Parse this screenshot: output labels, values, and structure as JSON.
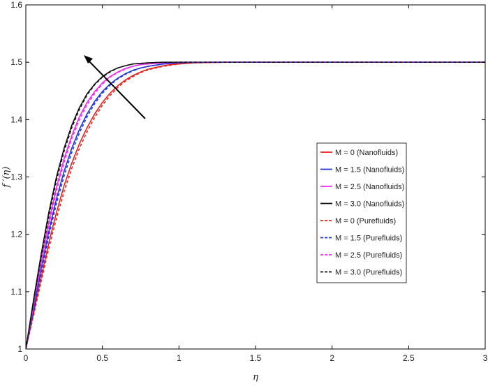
{
  "chart_data": {
    "type": "line",
    "title": "",
    "xlabel": "η",
    "ylabel": "f ′(η)",
    "xlim": [
      0,
      3
    ],
    "ylim": [
      1,
      1.6
    ],
    "xticks": [
      "0",
      "0.5",
      "1",
      "1.5",
      "2",
      "2.5",
      "3"
    ],
    "yticks": [
      "1",
      "1.1",
      "1.2",
      "1.3",
      "1.4",
      "1.5",
      "1.6"
    ],
    "grid": false,
    "legend_position": "right-middle",
    "annotation": "arrow pointing toward increasing M",
    "x": [
      0,
      0.05,
      0.1,
      0.15,
      0.2,
      0.25,
      0.3,
      0.35,
      0.4,
      0.45,
      0.5,
      0.55,
      0.6,
      0.65,
      0.7,
      0.75,
      0.8,
      0.85,
      0.9,
      0.95,
      1.0,
      1.1,
      1.2,
      1.3,
      1.5,
      2.0,
      2.5,
      3.0
    ],
    "series": [
      {
        "name": "M = 0 (Nanofluids)",
        "color": "#e8201b",
        "style": "solid",
        "values": [
          1.0,
          1.062,
          1.125,
          1.185,
          1.238,
          1.285,
          1.324,
          1.358,
          1.386,
          1.41,
          1.43,
          1.446,
          1.459,
          1.469,
          1.477,
          1.483,
          1.488,
          1.491,
          1.494,
          1.496,
          1.497,
          1.499,
          1.4995,
          1.5,
          1.5,
          1.5,
          1.5,
          1.5
        ]
      },
      {
        "name": "M = 1.5 (Nanofluids)",
        "color": "#1f34d8",
        "style": "solid",
        "values": [
          1.0,
          1.07,
          1.14,
          1.205,
          1.262,
          1.31,
          1.35,
          1.383,
          1.41,
          1.432,
          1.449,
          1.462,
          1.472,
          1.48,
          1.486,
          1.49,
          1.493,
          1.495,
          1.497,
          1.498,
          1.499,
          1.4995,
          1.5,
          1.5,
          1.5,
          1.5,
          1.5,
          1.5
        ]
      },
      {
        "name": "M = 2.5 (Nanofluids)",
        "color": "#ee2cee",
        "style": "solid",
        "values": [
          1.0,
          1.078,
          1.153,
          1.222,
          1.282,
          1.332,
          1.372,
          1.405,
          1.43,
          1.449,
          1.464,
          1.475,
          1.483,
          1.489,
          1.493,
          1.496,
          1.497,
          1.498,
          1.499,
          1.4995,
          1.5,
          1.5,
          1.5,
          1.5,
          1.5,
          1.5,
          1.5,
          1.5
        ]
      },
      {
        "name": "M = 3.0 (Nanofluids)",
        "color": "#111111",
        "style": "solid",
        "values": [
          1.0,
          1.085,
          1.165,
          1.238,
          1.3,
          1.35,
          1.39,
          1.421,
          1.445,
          1.462,
          1.475,
          1.484,
          1.49,
          1.494,
          1.497,
          1.498,
          1.499,
          1.4995,
          1.5,
          1.5,
          1.5,
          1.5,
          1.5,
          1.5,
          1.5,
          1.5,
          1.5,
          1.5
        ]
      },
      {
        "name": "M = 0 (Purefluids)",
        "color": "#e8201b",
        "style": "dashed",
        "values": [
          1.0,
          1.058,
          1.118,
          1.176,
          1.228,
          1.275,
          1.315,
          1.35,
          1.379,
          1.404,
          1.425,
          1.442,
          1.456,
          1.467,
          1.475,
          1.482,
          1.487,
          1.49,
          1.493,
          1.495,
          1.497,
          1.499,
          1.4995,
          1.5,
          1.5,
          1.5,
          1.5,
          1.5
        ]
      },
      {
        "name": "M = 1.5 (Purefluids)",
        "color": "#1f34d8",
        "style": "dashed",
        "values": [
          1.0,
          1.066,
          1.133,
          1.197,
          1.254,
          1.302,
          1.343,
          1.377,
          1.405,
          1.428,
          1.446,
          1.46,
          1.471,
          1.479,
          1.485,
          1.49,
          1.493,
          1.495,
          1.497,
          1.498,
          1.499,
          1.4995,
          1.5,
          1.5,
          1.5,
          1.5,
          1.5,
          1.5
        ]
      },
      {
        "name": "M = 2.5 (Purefluids)",
        "color": "#ee2cee",
        "style": "dashed",
        "values": [
          1.0,
          1.075,
          1.147,
          1.215,
          1.275,
          1.326,
          1.367,
          1.4,
          1.426,
          1.446,
          1.462,
          1.474,
          1.482,
          1.488,
          1.493,
          1.496,
          1.497,
          1.498,
          1.499,
          1.4995,
          1.5,
          1.5,
          1.5,
          1.5,
          1.5,
          1.5,
          1.5,
          1.5
        ]
      },
      {
        "name": "M = 3.0 (Purefluids)",
        "color": "#111111",
        "style": "dashed",
        "values": [
          1.0,
          1.082,
          1.16,
          1.232,
          1.294,
          1.345,
          1.386,
          1.418,
          1.443,
          1.461,
          1.474,
          1.483,
          1.49,
          1.494,
          1.497,
          1.498,
          1.499,
          1.4995,
          1.5,
          1.5,
          1.5,
          1.5,
          1.5,
          1.5,
          1.5,
          1.5,
          1.5,
          1.5
        ]
      }
    ]
  }
}
